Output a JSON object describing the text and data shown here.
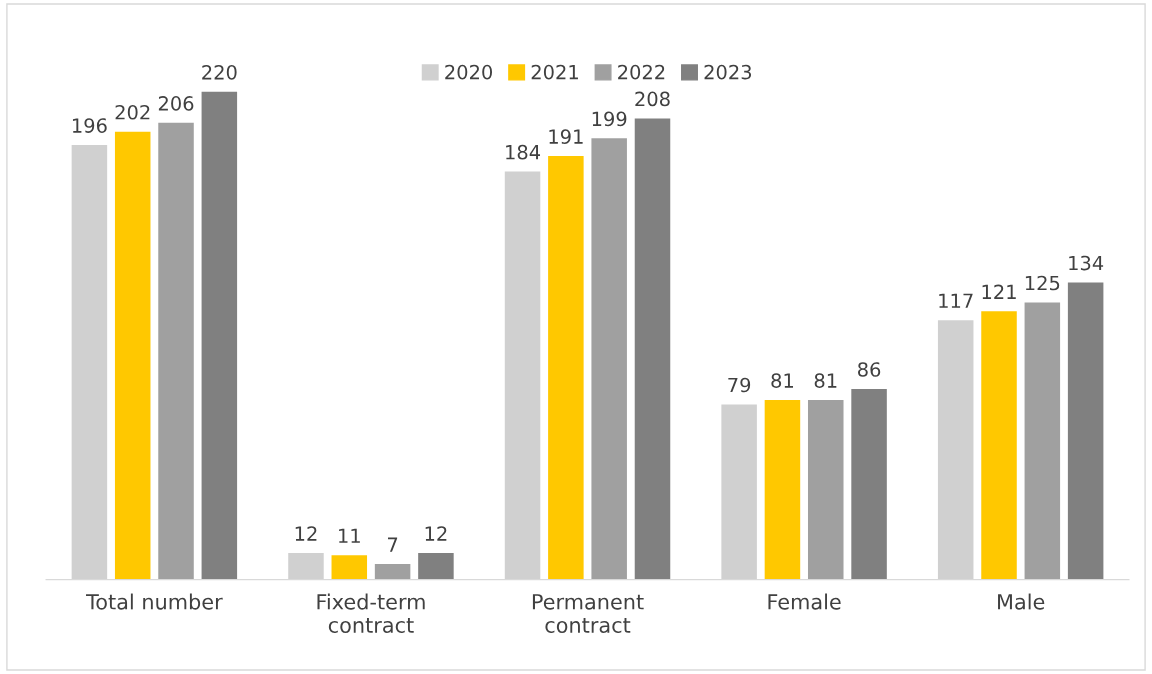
{
  "chart_data": {
    "type": "bar",
    "categories": [
      "Total number",
      "Fixed-term\ncontract",
      "Permanent\ncontract",
      "Female",
      "Male"
    ],
    "series": [
      {
        "name": "2020",
        "color": "#d0d0d0",
        "values": [
          196,
          12,
          184,
          79,
          117
        ]
      },
      {
        "name": "2021",
        "color": "#ffc800",
        "values": [
          202,
          11,
          191,
          81,
          121
        ]
      },
      {
        "name": "2022",
        "color": "#a0a0a0",
        "values": [
          206,
          7,
          199,
          81,
          125
        ]
      },
      {
        "name": "2023",
        "color": "#808080",
        "values": [
          220,
          12,
          208,
          86,
          134
        ]
      }
    ],
    "data_labels": true,
    "legend": "top",
    "grid": false,
    "tick_labels": "x"
  }
}
